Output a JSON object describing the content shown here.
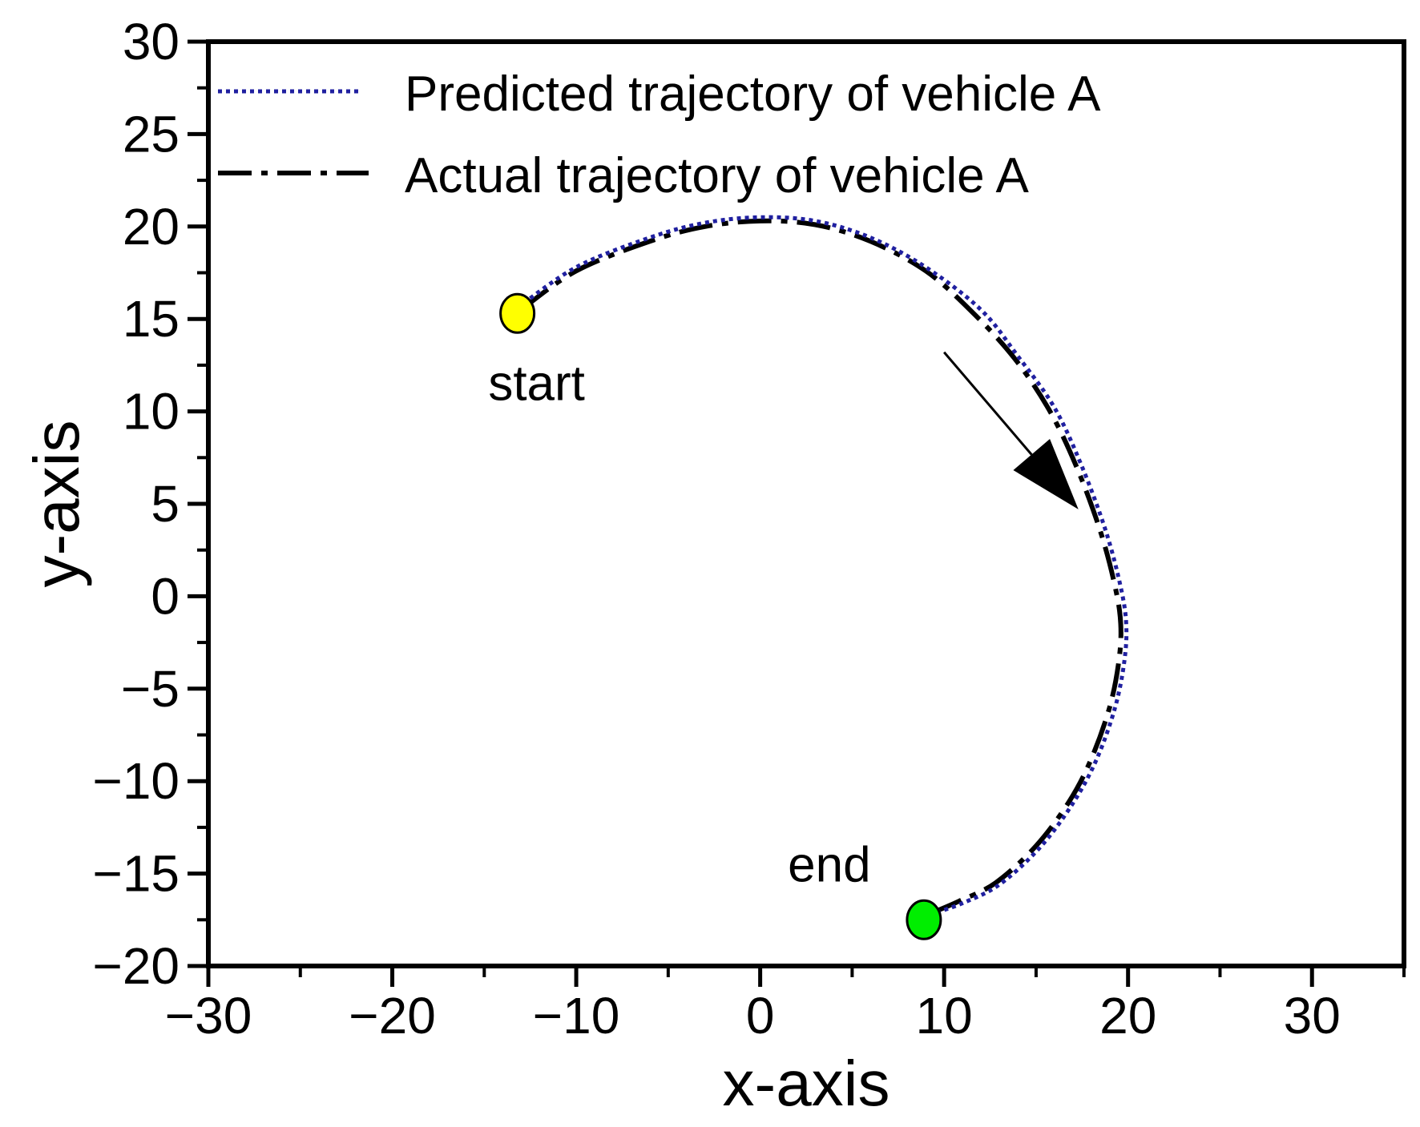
{
  "chart_data": {
    "type": "line",
    "title": "",
    "xlabel": "x-axis",
    "ylabel": "y-axis",
    "xlim": [
      -30,
      35
    ],
    "ylim": [
      -20,
      30
    ],
    "xticks": [
      -30,
      -20,
      -10,
      0,
      10,
      20,
      30
    ],
    "yticks": [
      -20,
      -15,
      -10,
      -5,
      0,
      5,
      10,
      15,
      20,
      25,
      30
    ],
    "grid": false,
    "legend_position": "top",
    "series": [
      {
        "name": "Predicted trajectory of vehicle A",
        "style": "dotted",
        "color": "#2020a0",
        "x": [
          -13.2,
          -10,
          -6,
          -3,
          0,
          3,
          6,
          9,
          12,
          14,
          16,
          17.5,
          18.8,
          19.6,
          19.9,
          19.8,
          19.3,
          18.3,
          17,
          15.2,
          13,
          11,
          9.3
        ],
        "y": [
          15.6,
          17.8,
          19.4,
          20.2,
          20.5,
          20.3,
          19.4,
          17.8,
          15.5,
          13,
          10.2,
          7,
          3.5,
          0.5,
          -1.5,
          -3.5,
          -6,
          -8.8,
          -11.2,
          -13.6,
          -15.6,
          -16.6,
          -17.2
        ]
      },
      {
        "name": "Actual trajectory of vehicle A",
        "style": "dash-dot",
        "color": "#000000",
        "x": [
          -13,
          -10,
          -6,
          -3,
          0,
          3,
          6,
          9,
          11.5,
          13.8,
          15.7,
          17.2,
          18.5,
          19.3,
          19.6,
          19.5,
          19,
          18,
          16.8,
          15,
          12.8,
          10.8,
          9.4
        ],
        "y": [
          15.5,
          17.6,
          19.2,
          20,
          20.3,
          20.1,
          19.2,
          17.6,
          15.4,
          12.9,
          10.1,
          7,
          3.5,
          0.5,
          -1.5,
          -3.5,
          -6,
          -8.8,
          -11.1,
          -13.5,
          -15.5,
          -16.5,
          -17.1
        ]
      }
    ],
    "annotations": [
      {
        "text": "start",
        "x": -13.2,
        "y": 15.3,
        "marker_color": "#ffff00"
      },
      {
        "text": "end",
        "x": 8.9,
        "y": -17.5,
        "marker_color": "#00ee00"
      }
    ],
    "arrow": {
      "from": [
        10,
        13.2
      ],
      "to": [
        17.3,
        4.7
      ]
    }
  }
}
